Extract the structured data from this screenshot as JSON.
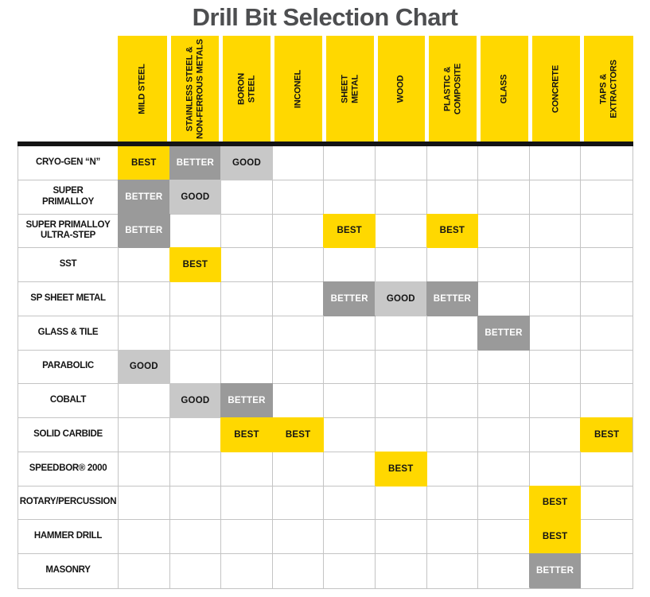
{
  "title": "Drill Bit Selection Chart",
  "colors": {
    "best_yellow": "#FFD800",
    "better_gray": "#9A9A9A",
    "good_gray": "#C8C8C8",
    "gridline": "#C4C4C4",
    "header_bar_black": "#141414",
    "title_text": "#4D4E50"
  },
  "chart_data": {
    "type": "heatmap",
    "title": "Drill Bit Selection Chart",
    "legend": [
      {
        "label": "BEST",
        "bg": "#FFD800",
        "text": "#141414"
      },
      {
        "label": "BETTER",
        "bg": "#9A9A9A",
        "text": "#FFFFFF"
      },
      {
        "label": "GOOD",
        "bg": "#C8C8C8",
        "text": "#141414"
      }
    ],
    "columns": [
      "MILD STEEL",
      "STAINLESS STEEL &\nNON-FERROUS METALS",
      "BORON\nSTEEL",
      "INCONEL",
      "SHEET\nMETAL",
      "WOOD",
      "PLASTIC &\nCOMPOSITE",
      "GLASS",
      "CONCRETE",
      "TAPS &\nEXTRACTORS"
    ],
    "rows": [
      {
        "label": "CRYO-GEN “N”",
        "values": [
          "BEST",
          "BETTER",
          "GOOD",
          "",
          "",
          "",
          "",
          "",
          "",
          ""
        ]
      },
      {
        "label": "SUPER\nPRIMALLOY",
        "values": [
          "BETTER",
          "GOOD",
          "",
          "",
          "",
          "",
          "",
          "",
          "",
          ""
        ]
      },
      {
        "label": "SUPER PRIMALLOY\nULTRA-STEP",
        "values": [
          "BETTER",
          "",
          "",
          "",
          "BEST",
          "",
          "BEST",
          "",
          "",
          ""
        ]
      },
      {
        "label": "SST",
        "values": [
          "",
          "BEST",
          "",
          "",
          "",
          "",
          "",
          "",
          "",
          ""
        ]
      },
      {
        "label": "SP SHEET METAL",
        "values": [
          "",
          "",
          "",
          "",
          "BETTER",
          "GOOD",
          "BETTER",
          "",
          "",
          ""
        ]
      },
      {
        "label": "GLASS & TILE",
        "values": [
          "",
          "",
          "",
          "",
          "",
          "",
          "",
          "BETTER",
          "",
          ""
        ]
      },
      {
        "label": "PARABOLIC",
        "values": [
          "GOOD",
          "",
          "",
          "",
          "",
          "",
          "",
          "",
          "",
          ""
        ]
      },
      {
        "label": "COBALT",
        "values": [
          "",
          "GOOD",
          "BETTER",
          "",
          "",
          "",
          "",
          "",
          "",
          ""
        ]
      },
      {
        "label": "SOLID CARBIDE",
        "values": [
          "",
          "",
          "BEST",
          "BEST",
          "",
          "",
          "",
          "",
          "",
          "BEST"
        ]
      },
      {
        "label": "SPEEDBOR® 2000",
        "values": [
          "",
          "",
          "",
          "",
          "",
          "BEST",
          "",
          "",
          "",
          ""
        ]
      },
      {
        "label": "ROTARY/PERCUSSION",
        "values": [
          "",
          "",
          "",
          "",
          "",
          "",
          "",
          "",
          "BEST",
          ""
        ]
      },
      {
        "label": "HAMMER DRILL",
        "values": [
          "",
          "",
          "",
          "",
          "",
          "",
          "",
          "",
          "BEST",
          ""
        ]
      },
      {
        "label": "MASONRY",
        "values": [
          "",
          "",
          "",
          "",
          "",
          "",
          "",
          "",
          "BETTER",
          ""
        ]
      }
    ]
  }
}
